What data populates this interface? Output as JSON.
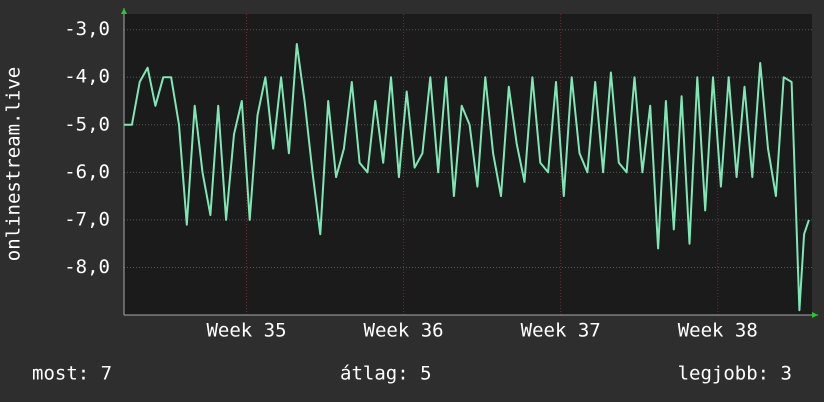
{
  "chart_data": {
    "type": "line",
    "y_label": "onlinestream.live",
    "x": [
      34.22,
      34.27,
      34.32,
      34.37,
      34.42,
      34.47,
      34.52,
      34.57,
      34.62,
      34.67,
      34.72,
      34.77,
      34.82,
      34.87,
      34.92,
      34.97,
      35.02,
      35.07,
      35.12,
      35.17,
      35.22,
      35.27,
      35.32,
      35.37,
      35.42,
      35.47,
      35.52,
      35.57,
      35.62,
      35.67,
      35.72,
      35.77,
      35.82,
      35.87,
      35.92,
      35.97,
      36.02,
      36.07,
      36.12,
      36.17,
      36.22,
      36.27,
      36.32,
      36.37,
      36.42,
      36.47,
      36.52,
      36.57,
      36.62,
      36.67,
      36.72,
      36.77,
      36.82,
      36.87,
      36.92,
      36.97,
      37.02,
      37.07,
      37.12,
      37.17,
      37.22,
      37.27,
      37.32,
      37.37,
      37.42,
      37.47,
      37.52,
      37.57,
      37.62,
      37.67,
      37.72,
      37.77,
      37.82,
      37.87,
      37.92,
      37.97,
      38.02,
      38.07,
      38.12,
      38.17,
      38.22,
      38.27,
      38.32,
      38.37,
      38.42,
      38.47,
      38.52,
      38.55,
      38.58
    ],
    "series": [
      {
        "color": "#7ee8b5",
        "values": [
          -5,
          -5,
          -4.1,
          -3.8,
          -4.6,
          -4.0,
          -4.0,
          -5.0,
          -7.1,
          -4.6,
          -6.0,
          -6.9,
          -4.6,
          -7.0,
          -5.2,
          -4.5,
          -7.0,
          -4.8,
          -4.0,
          -5.5,
          -4.0,
          -5.6,
          -3.3,
          -4.5,
          -6.0,
          -7.3,
          -4.5,
          -6.1,
          -5.5,
          -4.1,
          -5.8,
          -6.0,
          -4.5,
          -5.8,
          -4.0,
          -6.1,
          -4.3,
          -5.9,
          -5.6,
          -4.0,
          -6.0,
          -4.0,
          -6.5,
          -4.6,
          -5.0,
          -6.3,
          -4.0,
          -5.6,
          -6.5,
          -4.2,
          -5.4,
          -6.2,
          -4.0,
          -5.8,
          -6.0,
          -4.1,
          -6.5,
          -4.0,
          -5.6,
          -6.0,
          -4.1,
          -6.0,
          -3.9,
          -5.8,
          -6.0,
          -4.0,
          -6.0,
          -4.6,
          -7.6,
          -4.5,
          -7.2,
          -4.4,
          -7.5,
          -4.0,
          -6.8,
          -4.0,
          -6.3,
          -4.0,
          -6.1,
          -4.2,
          -6.1,
          -3.7,
          -5.5,
          -6.5,
          -4.0,
          -4.1,
          -8.9,
          -7.3,
          -7.0
        ]
      }
    ],
    "xlim": [
      34.22,
      38.6
    ],
    "ylim": [
      -9,
      -2.67
    ],
    "xticks": [
      {
        "value": 35,
        "label": "Week 35"
      },
      {
        "value": 36,
        "label": "Week 36"
      },
      {
        "value": 37,
        "label": "Week 37"
      },
      {
        "value": 38,
        "label": "Week 38"
      }
    ],
    "yticks": [
      {
        "value": -3,
        "label": "-3,0"
      },
      {
        "value": -4,
        "label": "-4,0"
      },
      {
        "value": -5,
        "label": "-5,0"
      },
      {
        "value": -6,
        "label": "-6,0"
      },
      {
        "value": -7,
        "label": "-7,0"
      },
      {
        "value": -8,
        "label": "-8,0"
      }
    ],
    "grid": true
  },
  "footer": {
    "current": "most: 7",
    "average": "átlag: 5",
    "best": "legjobb: 3"
  }
}
